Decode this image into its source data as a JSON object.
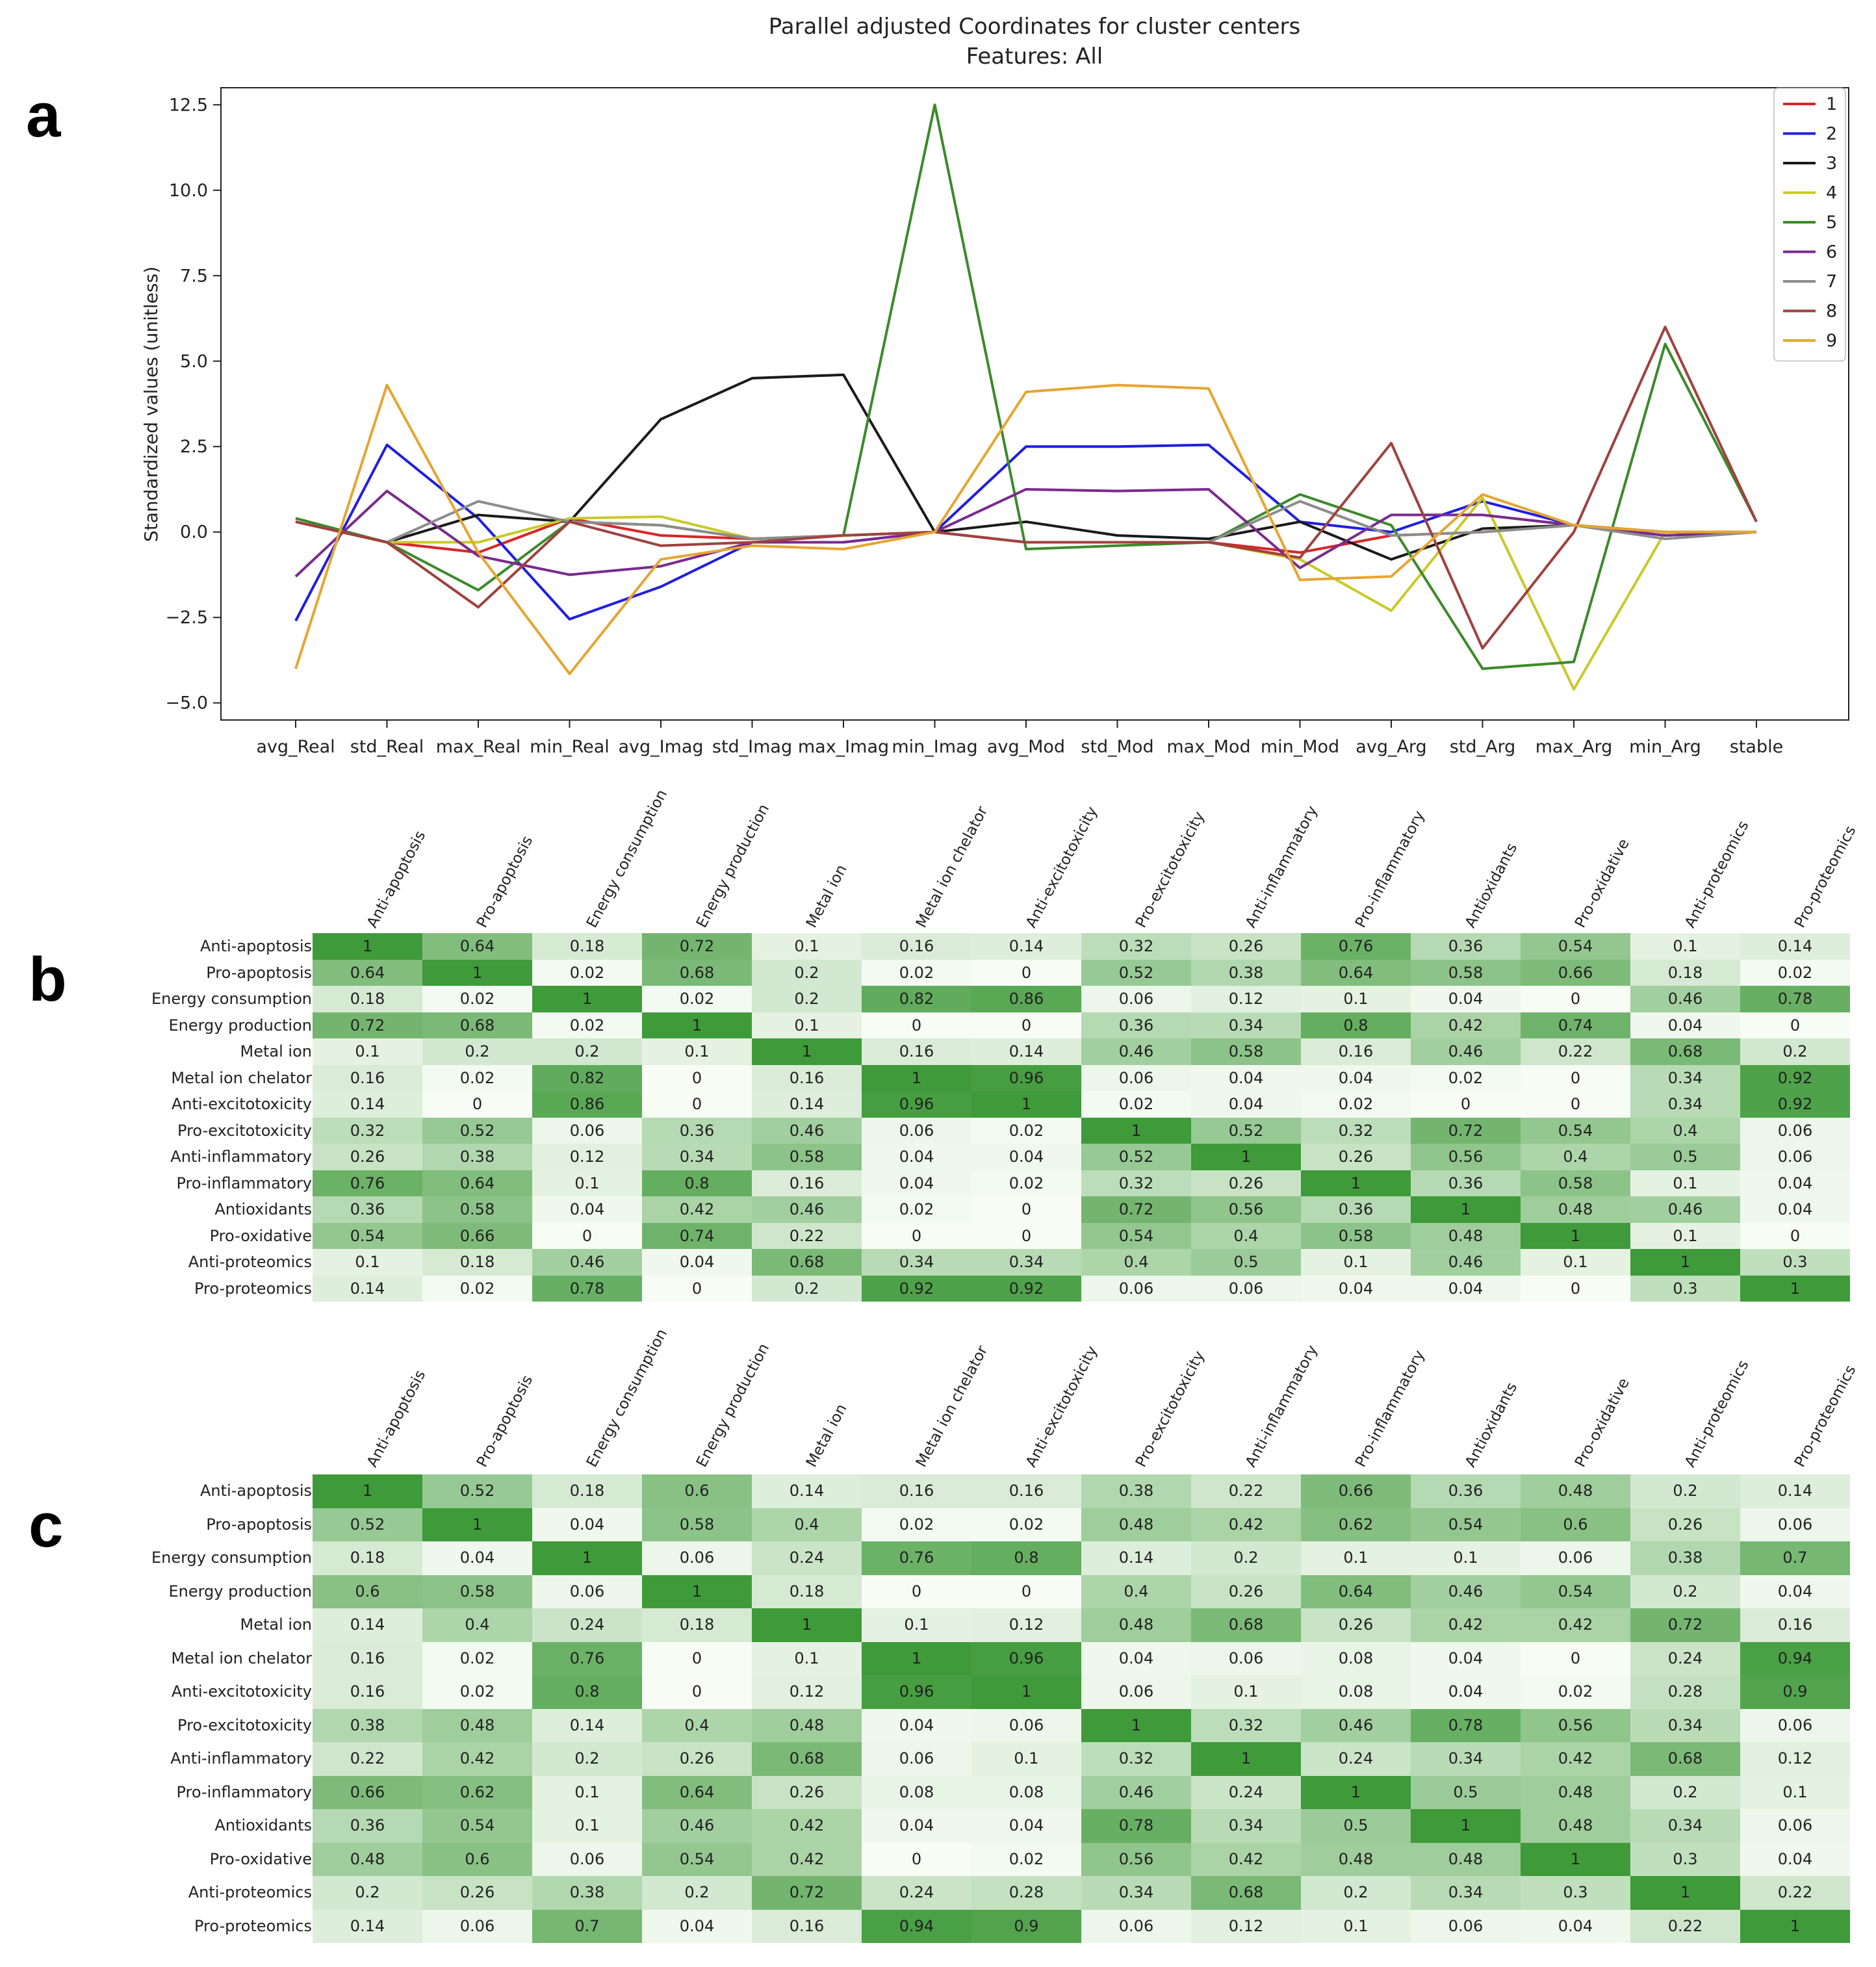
{
  "panels": {
    "a": "a",
    "b": "b",
    "c": "c"
  },
  "chart_data": [
    {
      "type": "line",
      "title": "Parallel adjusted Coordinates for cluster centers",
      "subtitle": "Features: All",
      "xlabel": "",
      "ylabel": "Standardized values (unitless)",
      "ylim": [
        -5.5,
        13.0
      ],
      "yticks": [
        -5.0,
        -2.5,
        0.0,
        2.5,
        5.0,
        7.5,
        10.0,
        12.5
      ],
      "ytick_labels": [
        "−5.0",
        "−2.5",
        "0.0",
        "2.5",
        "5.0",
        "7.5",
        "10.0",
        "12.5"
      ],
      "grid": false,
      "legend_position": "top-right",
      "categories": [
        "avg_Real",
        "std_Real",
        "max_Real",
        "min_Real",
        "avg_Imag",
        "std_Imag",
        "max_Imag",
        "min_Imag",
        "avg_Mod",
        "std_Mod",
        "max_Mod",
        "min_Mod",
        "avg_Arg",
        "std_Arg",
        "max_Arg",
        "min_Arg",
        "stable"
      ],
      "series": [
        {
          "name": "1",
          "color": "#d62728",
          "values": [
            0.3,
            -0.3,
            -0.6,
            0.4,
            -0.1,
            -0.2,
            -0.1,
            0.0,
            -0.3,
            -0.3,
            -0.3,
            -0.6,
            -0.1,
            0.0,
            0.2,
            0.0,
            0.0
          ]
        },
        {
          "name": "2",
          "color": "#1f1fe0",
          "values": [
            -2.6,
            2.55,
            0.4,
            -2.55,
            -1.6,
            -0.3,
            -0.3,
            0.0,
            2.5,
            2.5,
            2.55,
            0.3,
            0.0,
            0.9,
            0.2,
            -0.1,
            0.0
          ]
        },
        {
          "name": "3",
          "color": "#1a1a1a",
          "values": [
            0.3,
            -0.3,
            0.5,
            0.3,
            3.3,
            4.5,
            4.6,
            0.0,
            0.3,
            -0.1,
            -0.2,
            0.3,
            -0.8,
            0.1,
            0.2,
            0.0,
            0.0
          ]
        },
        {
          "name": "4",
          "color": "#c9c92a",
          "values": [
            0.4,
            -0.3,
            -0.3,
            0.4,
            0.45,
            -0.2,
            -0.1,
            0.0,
            -0.3,
            -0.3,
            -0.3,
            -0.8,
            -2.3,
            1.0,
            -4.6,
            0.0,
            0.0
          ]
        },
        {
          "name": "5",
          "color": "#3c8a2a",
          "values": [
            0.4,
            -0.3,
            -1.7,
            0.3,
            0.2,
            -0.2,
            -0.1,
            12.5,
            -0.5,
            -0.4,
            -0.3,
            1.1,
            0.2,
            -4.0,
            -3.8,
            5.5,
            0.3
          ]
        },
        {
          "name": "6",
          "color": "#7a2a8e",
          "values": [
            -1.3,
            1.2,
            -0.7,
            -1.25,
            -1.0,
            -0.3,
            -0.3,
            0.0,
            1.25,
            1.2,
            1.25,
            -1.05,
            0.5,
            0.5,
            0.2,
            -0.1,
            0.0
          ]
        },
        {
          "name": "7",
          "color": "#8c8c8c",
          "values": [
            0.3,
            -0.3,
            0.9,
            0.3,
            0.2,
            -0.2,
            -0.1,
            0.0,
            -0.3,
            -0.3,
            -0.3,
            0.9,
            -0.1,
            0.0,
            0.2,
            -0.2,
            0.0
          ]
        },
        {
          "name": "8",
          "color": "#a0413e",
          "values": [
            0.3,
            -0.3,
            -2.2,
            0.3,
            -0.4,
            -0.3,
            -0.1,
            0.0,
            -0.3,
            -0.3,
            -0.3,
            -0.75,
            2.6,
            -3.4,
            0.0,
            6.0,
            0.3
          ]
        },
        {
          "name": "9",
          "color": "#e6a531",
          "values": [
            -4.0,
            4.3,
            -0.6,
            -4.15,
            -0.8,
            -0.4,
            -0.5,
            0.0,
            4.1,
            4.3,
            4.2,
            -1.4,
            -1.3,
            1.1,
            0.2,
            0.0,
            0.0
          ]
        }
      ]
    },
    {
      "type": "heatmap",
      "panel": "b",
      "colormap": "white-to-green",
      "vmin": 0,
      "vmax": 1,
      "low_color": "#f7fcf5",
      "high_color": "#3f9a3a",
      "row_labels": [
        "Anti-apoptosis",
        "Pro-apoptosis",
        "Energy consumption",
        "Energy production",
        "Metal ion",
        "Metal ion chelator",
        "Anti-excitotoxicity",
        "Pro-excitotoxicity",
        "Anti-inflammatory",
        "Pro-inflammatory",
        "Antioxidants",
        "Pro-oxidative",
        "Anti-proteomics",
        "Pro-proteomics"
      ],
      "col_labels": [
        "Anti-apoptosis",
        "Pro-apoptosis",
        "Energy consumption",
        "Energy production",
        "Metal ion",
        "Metal ion chelator",
        "Anti-excitotoxicity",
        "Pro-excitotoxicity",
        "Anti-inflammatory",
        "Pro-inflammatory",
        "Antioxidants",
        "Pro-oxidative",
        "Anti-proteomics",
        "Pro-proteomics"
      ],
      "values": [
        [
          "1",
          "0.64",
          "0.18",
          "0.72",
          "0.1",
          "0.16",
          "0.14",
          "0.32",
          "0.26",
          "0.76",
          "0.36",
          "0.54",
          "0.1",
          "0.14"
        ],
        [
          "0.64",
          "1",
          "0.02",
          "0.68",
          "0.2",
          "0.02",
          "0",
          "0.52",
          "0.38",
          "0.64",
          "0.58",
          "0.66",
          "0.18",
          "0.02"
        ],
        [
          "0.18",
          "0.02",
          "1",
          "0.02",
          "0.2",
          "0.82",
          "0.86",
          "0.06",
          "0.12",
          "0.1",
          "0.04",
          "0",
          "0.46",
          "0.78"
        ],
        [
          "0.72",
          "0.68",
          "0.02",
          "1",
          "0.1",
          "0",
          "0",
          "0.36",
          "0.34",
          "0.8",
          "0.42",
          "0.74",
          "0.04",
          "0"
        ],
        [
          "0.1",
          "0.2",
          "0.2",
          "0.1",
          "1",
          "0.16",
          "0.14",
          "0.46",
          "0.58",
          "0.16",
          "0.46",
          "0.22",
          "0.68",
          "0.2"
        ],
        [
          "0.16",
          "0.02",
          "0.82",
          "0",
          "0.16",
          "1",
          "0.96",
          "0.06",
          "0.04",
          "0.04",
          "0.02",
          "0",
          "0.34",
          "0.92"
        ],
        [
          "0.14",
          "0",
          "0.86",
          "0",
          "0.14",
          "0.96",
          "1",
          "0.02",
          "0.04",
          "0.02",
          "0",
          "0",
          "0.34",
          "0.92"
        ],
        [
          "0.32",
          "0.52",
          "0.06",
          "0.36",
          "0.46",
          "0.06",
          "0.02",
          "1",
          "0.52",
          "0.32",
          "0.72",
          "0.54",
          "0.4",
          "0.06"
        ],
        [
          "0.26",
          "0.38",
          "0.12",
          "0.34",
          "0.58",
          "0.04",
          "0.04",
          "0.52",
          "1",
          "0.26",
          "0.56",
          "0.4",
          "0.5",
          "0.06"
        ],
        [
          "0.76",
          "0.64",
          "0.1",
          "0.8",
          "0.16",
          "0.04",
          "0.02",
          "0.32",
          "0.26",
          "1",
          "0.36",
          "0.58",
          "0.1",
          "0.04"
        ],
        [
          "0.36",
          "0.58",
          "0.04",
          "0.42",
          "0.46",
          "0.02",
          "0",
          "0.72",
          "0.56",
          "0.36",
          "1",
          "0.48",
          "0.46",
          "0.04"
        ],
        [
          "0.54",
          "0.66",
          "0",
          "0.74",
          "0.22",
          "0",
          "0",
          "0.54",
          "0.4",
          "0.58",
          "0.48",
          "1",
          "0.1",
          "0"
        ],
        [
          "0.1",
          "0.18",
          "0.46",
          "0.04",
          "0.68",
          "0.34",
          "0.34",
          "0.4",
          "0.5",
          "0.1",
          "0.46",
          "0.1",
          "1",
          "0.3"
        ],
        [
          "0.14",
          "0.02",
          "0.78",
          "0",
          "0.2",
          "0.92",
          "0.92",
          "0.06",
          "0.06",
          "0.04",
          "0.04",
          "0",
          "0.3",
          "1"
        ]
      ]
    },
    {
      "type": "heatmap",
      "panel": "c",
      "colormap": "white-to-green",
      "vmin": 0,
      "vmax": 1,
      "low_color": "#f7fcf5",
      "high_color": "#3f9a3a",
      "row_labels": [
        "Anti-apoptosis",
        "Pro-apoptosis",
        "Energy consumption",
        "Energy production",
        "Metal ion",
        "Metal ion chelator",
        "Anti-excitotoxicity",
        "Pro-excitotoxicity",
        "Anti-inflammatory",
        "Pro-inflammatory",
        "Antioxidants",
        "Pro-oxidative",
        "Anti-proteomics",
        "Pro-proteomics"
      ],
      "col_labels": [
        "Anti-apoptosis",
        "Pro-apoptosis",
        "Energy consumption",
        "Energy production",
        "Metal ion",
        "Metal ion chelator",
        "Anti-excitotoxicity",
        "Pro-excitotoxicity",
        "Anti-inflammatory",
        "Pro-inflammatory",
        "Antioxidants",
        "Pro-oxidative",
        "Anti-proteomics",
        "Pro-proteomics"
      ],
      "values": [
        [
          "1",
          "0.52",
          "0.18",
          "0.6",
          "0.14",
          "0.16",
          "0.16",
          "0.38",
          "0.22",
          "0.66",
          "0.36",
          "0.48",
          "0.2",
          "0.14"
        ],
        [
          "0.52",
          "1",
          "0.04",
          "0.58",
          "0.4",
          "0.02",
          "0.02",
          "0.48",
          "0.42",
          "0.62",
          "0.54",
          "0.6",
          "0.26",
          "0.06"
        ],
        [
          "0.18",
          "0.04",
          "1",
          "0.06",
          "0.24",
          "0.76",
          "0.8",
          "0.14",
          "0.2",
          "0.1",
          "0.1",
          "0.06",
          "0.38",
          "0.7"
        ],
        [
          "0.6",
          "0.58",
          "0.06",
          "1",
          "0.18",
          "0",
          "0",
          "0.4",
          "0.26",
          "0.64",
          "0.46",
          "0.54",
          "0.2",
          "0.04"
        ],
        [
          "0.14",
          "0.4",
          "0.24",
          "0.18",
          "1",
          "0.1",
          "0.12",
          "0.48",
          "0.68",
          "0.26",
          "0.42",
          "0.42",
          "0.72",
          "0.16"
        ],
        [
          "0.16",
          "0.02",
          "0.76",
          "0",
          "0.1",
          "1",
          "0.96",
          "0.04",
          "0.06",
          "0.08",
          "0.04",
          "0",
          "0.24",
          "0.94"
        ],
        [
          "0.16",
          "0.02",
          "0.8",
          "0",
          "0.12",
          "0.96",
          "1",
          "0.06",
          "0.1",
          "0.08",
          "0.04",
          "0.02",
          "0.28",
          "0.9"
        ],
        [
          "0.38",
          "0.48",
          "0.14",
          "0.4",
          "0.48",
          "0.04",
          "0.06",
          "1",
          "0.32",
          "0.46",
          "0.78",
          "0.56",
          "0.34",
          "0.06"
        ],
        [
          "0.22",
          "0.42",
          "0.2",
          "0.26",
          "0.68",
          "0.06",
          "0.1",
          "0.32",
          "1",
          "0.24",
          "0.34",
          "0.42",
          "0.68",
          "0.12"
        ],
        [
          "0.66",
          "0.62",
          "0.1",
          "0.64",
          "0.26",
          "0.08",
          "0.08",
          "0.46",
          "0.24",
          "1",
          "0.5",
          "0.48",
          "0.2",
          "0.1"
        ],
        [
          "0.36",
          "0.54",
          "0.1",
          "0.46",
          "0.42",
          "0.04",
          "0.04",
          "0.78",
          "0.34",
          "0.5",
          "1",
          "0.48",
          "0.34",
          "0.06"
        ],
        [
          "0.48",
          "0.6",
          "0.06",
          "0.54",
          "0.42",
          "0",
          "0.02",
          "0.56",
          "0.42",
          "0.48",
          "0.48",
          "1",
          "0.3",
          "0.04"
        ],
        [
          "0.2",
          "0.26",
          "0.38",
          "0.2",
          "0.72",
          "0.24",
          "0.28",
          "0.34",
          "0.68",
          "0.2",
          "0.34",
          "0.3",
          "1",
          "0.22"
        ],
        [
          "0.14",
          "0.06",
          "0.7",
          "0.04",
          "0.16",
          "0.94",
          "0.9",
          "0.06",
          "0.12",
          "0.1",
          "0.06",
          "0.04",
          "0.22",
          "1"
        ]
      ]
    }
  ]
}
